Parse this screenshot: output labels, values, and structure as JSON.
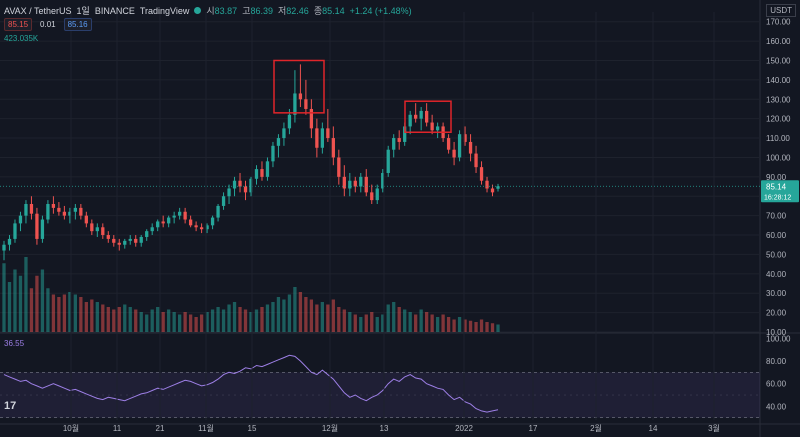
{
  "header": {
    "symbol": "AVAX / TetherUS",
    "interval": "1일",
    "exchange": "BINANCE",
    "source": "TradingView",
    "open_label": "시",
    "open": "83.87",
    "high_label": "고",
    "high": "86.39",
    "low_label": "저",
    "low": "82.46",
    "close_label": "종",
    "close": "85.14",
    "change": "+1.24 (+1.48%)"
  },
  "quote": {
    "sell": "85.15",
    "spread": "0.01",
    "buy": "85.16"
  },
  "volume_label": "423.035K",
  "rsi_label": "36.55",
  "currency_button": "USDT",
  "price_badge": {
    "price": "85.14",
    "countdown": "16:28:12"
  },
  "colors": {
    "up": "#26a69a",
    "down": "#ef5350",
    "rsi": "#9d7fe6",
    "highlight": "#e0252a"
  },
  "chart_data": {
    "type": "candlestick",
    "price_ticks": [
      "170.00",
      "160.00",
      "150.00",
      "140.00",
      "130.00",
      "120.00",
      "110.00",
      "100.00",
      "90.00",
      "80.00",
      "70.00",
      "60.00",
      "50.00",
      "40.00",
      "30.00",
      "20.00",
      "10.00"
    ],
    "rsi_ticks": [
      "100.00",
      "80.00",
      "60.00",
      "40.00"
    ],
    "x_ticks": [
      "10월",
      "11",
      "21",
      "11월",
      "15",
      "12월",
      "13",
      "2022",
      "17",
      "2월",
      "14",
      "3월"
    ],
    "ylim": [
      10,
      175
    ],
    "rsi_ylim": [
      28,
      102
    ],
    "rsi_bands": [
      70,
      30
    ],
    "last_price": 85.14,
    "candles": [
      [
        52,
        57,
        47,
        55
      ],
      [
        55,
        60,
        52,
        58
      ],
      [
        58,
        68,
        56,
        66
      ],
      [
        66,
        72,
        62,
        70
      ],
      [
        70,
        78,
        66,
        76
      ],
      [
        76,
        80,
        68,
        71
      ],
      [
        71,
        74,
        55,
        58
      ],
      [
        58,
        70,
        56,
        68
      ],
      [
        68,
        78,
        66,
        76
      ],
      [
        76,
        80,
        71,
        74
      ],
      [
        74,
        77,
        70,
        72
      ],
      [
        72,
        75,
        68,
        70
      ],
      [
        70,
        74,
        66,
        72
      ],
      [
        72,
        76,
        68,
        74
      ],
      [
        74,
        76,
        68,
        70
      ],
      [
        70,
        72,
        64,
        66
      ],
      [
        66,
        68,
        60,
        62
      ],
      [
        62,
        66,
        59,
        64
      ],
      [
        64,
        66,
        58,
        60
      ],
      [
        60,
        62,
        56,
        58
      ],
      [
        58,
        60,
        54,
        56
      ],
      [
        56,
        58,
        52,
        55
      ],
      [
        55,
        58,
        53,
        57
      ],
      [
        57,
        60,
        55,
        58
      ],
      [
        58,
        60,
        54,
        56
      ],
      [
        56,
        60,
        54,
        59
      ],
      [
        59,
        63,
        57,
        62
      ],
      [
        62,
        66,
        60,
        64
      ],
      [
        64,
        68,
        62,
        67
      ],
      [
        67,
        70,
        64,
        66
      ],
      [
        66,
        70,
        64,
        69
      ],
      [
        69,
        72,
        66,
        70
      ],
      [
        70,
        74,
        68,
        72
      ],
      [
        72,
        74,
        66,
        68
      ],
      [
        68,
        70,
        64,
        65
      ],
      [
        65,
        67,
        62,
        64
      ],
      [
        64,
        66,
        61,
        63
      ],
      [
        63,
        66,
        61,
        65
      ],
      [
        65,
        70,
        63,
        69
      ],
      [
        69,
        76,
        67,
        75
      ],
      [
        75,
        82,
        73,
        80
      ],
      [
        80,
        86,
        76,
        84
      ],
      [
        84,
        90,
        80,
        88
      ],
      [
        88,
        92,
        82,
        85
      ],
      [
        85,
        88,
        78,
        82
      ],
      [
        82,
        90,
        80,
        89
      ],
      [
        89,
        96,
        86,
        94
      ],
      [
        94,
        98,
        88,
        90
      ],
      [
        90,
        100,
        88,
        98
      ],
      [
        98,
        108,
        95,
        106
      ],
      [
        106,
        112,
        100,
        110
      ],
      [
        110,
        118,
        106,
        115
      ],
      [
        115,
        125,
        112,
        122
      ],
      [
        122,
        145,
        118,
        133
      ],
      [
        133,
        148,
        126,
        130
      ],
      [
        130,
        140,
        122,
        125
      ],
      [
        125,
        130,
        110,
        115
      ],
      [
        115,
        120,
        100,
        105
      ],
      [
        105,
        118,
        102,
        115
      ],
      [
        115,
        125,
        108,
        110
      ],
      [
        110,
        116,
        96,
        100
      ],
      [
        100,
        104,
        86,
        90
      ],
      [
        90,
        96,
        80,
        84
      ],
      [
        84,
        92,
        80,
        88
      ],
      [
        88,
        90,
        82,
        85
      ],
      [
        85,
        92,
        82,
        90
      ],
      [
        90,
        94,
        80,
        82
      ],
      [
        82,
        86,
        76,
        78
      ],
      [
        78,
        86,
        76,
        84
      ],
      [
        84,
        94,
        82,
        92
      ],
      [
        92,
        106,
        90,
        104
      ],
      [
        104,
        112,
        100,
        110
      ],
      [
        110,
        114,
        104,
        108
      ],
      [
        108,
        118,
        106,
        116
      ],
      [
        116,
        124,
        112,
        122
      ],
      [
        122,
        128,
        118,
        120
      ],
      [
        120,
        126,
        114,
        124
      ],
      [
        124,
        128,
        116,
        118
      ],
      [
        118,
        122,
        112,
        114
      ],
      [
        114,
        118,
        110,
        116
      ],
      [
        116,
        118,
        108,
        110
      ],
      [
        110,
        112,
        102,
        104
      ],
      [
        104,
        108,
        96,
        100
      ],
      [
        100,
        114,
        98,
        112
      ],
      [
        112,
        116,
        106,
        108
      ],
      [
        108,
        112,
        98,
        102
      ],
      [
        102,
        106,
        92,
        95
      ],
      [
        95,
        98,
        86,
        88
      ],
      [
        88,
        90,
        82,
        84
      ],
      [
        84,
        86,
        80,
        82
      ],
      [
        83.87,
        86.39,
        82.46,
        85.14
      ]
    ],
    "volumes": [
      55,
      40,
      50,
      45,
      60,
      35,
      45,
      50,
      35,
      30,
      28,
      30,
      32,
      30,
      28,
      24,
      26,
      24,
      22,
      20,
      18,
      20,
      22,
      20,
      18,
      16,
      14,
      18,
      20,
      16,
      18,
      16,
      14,
      16,
      14,
      12,
      14,
      16,
      18,
      20,
      18,
      22,
      24,
      20,
      18,
      16,
      18,
      20,
      22,
      24,
      28,
      26,
      30,
      36,
      32,
      28,
      26,
      22,
      24,
      22,
      26,
      20,
      18,
      16,
      14,
      12,
      14,
      16,
      12,
      14,
      22,
      24,
      20,
      18,
      16,
      14,
      18,
      16,
      14,
      12,
      14,
      12,
      10,
      12,
      10,
      9,
      8,
      10,
      8,
      7,
      6
    ],
    "rsi": [
      68,
      66,
      64,
      62,
      63,
      60,
      58,
      56,
      58,
      60,
      58,
      56,
      54,
      55,
      53,
      51,
      49,
      47,
      46,
      48,
      47,
      46,
      45,
      47,
      49,
      51,
      52,
      54,
      56,
      55,
      57,
      59,
      61,
      63,
      62,
      60,
      58,
      59,
      61,
      64,
      68,
      70,
      69,
      71,
      74,
      73,
      76,
      75,
      77,
      79,
      81,
      83,
      85,
      84,
      80,
      75,
      70,
      68,
      72,
      68,
      64,
      58,
      52,
      48,
      50,
      47,
      45,
      48,
      50,
      54,
      60,
      64,
      62,
      66,
      68,
      65,
      64,
      60,
      58,
      56,
      55,
      50,
      46,
      48,
      44,
      42,
      38,
      36,
      35,
      36,
      37
    ]
  }
}
